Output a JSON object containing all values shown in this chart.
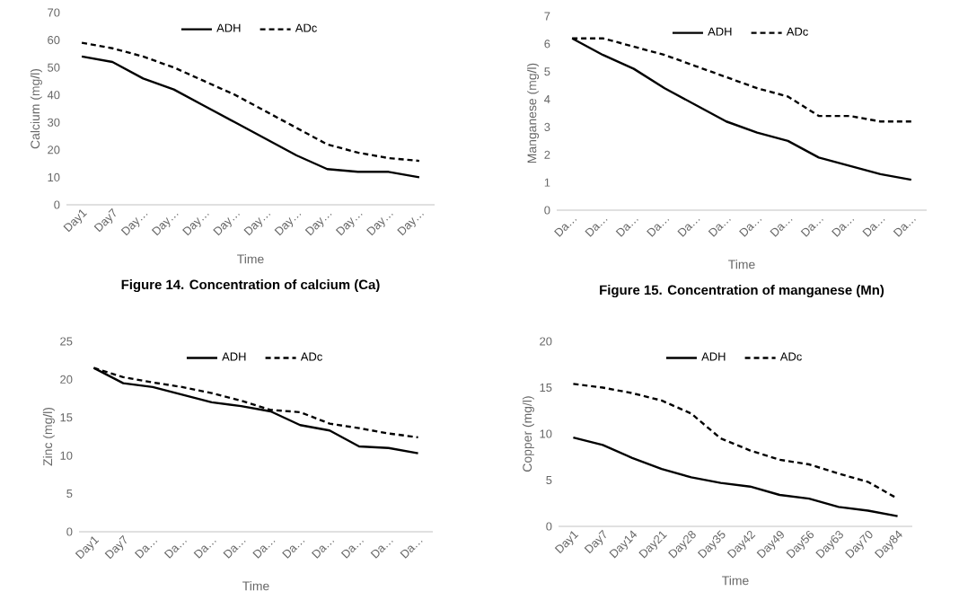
{
  "chart_data": [
    {
      "type": "line",
      "title": "Figure 14. Concentration of calcium (Ca)",
      "xlabel": "Time",
      "ylabel": "Calcium (mg/l)",
      "categories": [
        "Day1",
        "Day7",
        "Day…",
        "Day…",
        "Day…",
        "Day…",
        "Day…",
        "Day…",
        "Day…",
        "Day…",
        "Day…",
        "Day…"
      ],
      "ylim": [
        0,
        70
      ],
      "yticks": [
        0,
        10,
        20,
        30,
        40,
        50,
        60,
        70
      ],
      "legend": "top",
      "series": [
        {
          "name": "ADH",
          "color": "#000000",
          "line_style": "solid",
          "values": [
            54,
            52,
            46,
            42,
            36,
            30,
            24,
            18,
            13,
            12,
            12,
            10
          ]
        },
        {
          "name": "ADc",
          "color": "#000000",
          "line_style": "dashed",
          "values": [
            59,
            57,
            54,
            50,
            45,
            40,
            34,
            28,
            22,
            19,
            17,
            16
          ]
        }
      ]
    },
    {
      "type": "line",
      "title": "Figure 15. Concentration of manganese (Mn)",
      "xlabel": "Time",
      "ylabel": "Manganese (mg/l)",
      "categories": [
        "Da…",
        "Da…",
        "Da…",
        "Da…",
        "Da…",
        "Da…",
        "Da…",
        "Da…",
        "Da…",
        "Da…",
        "Da…",
        "Da…"
      ],
      "ylim": [
        0,
        7
      ],
      "yticks": [
        0,
        1,
        2,
        3,
        4,
        5,
        6,
        7
      ],
      "legend": "top",
      "series": [
        {
          "name": "ADH",
          "color": "#000000",
          "line_style": "solid",
          "values": [
            6.2,
            5.6,
            5.1,
            4.4,
            3.8,
            3.2,
            2.8,
            2.5,
            1.9,
            1.6,
            1.3,
            1.1
          ]
        },
        {
          "name": "ADc",
          "color": "#000000",
          "line_style": "dashed",
          "values": [
            6.2,
            6.2,
            5.9,
            5.6,
            5.2,
            4.8,
            4.4,
            4.1,
            3.4,
            3.4,
            3.2,
            3.2
          ]
        }
      ]
    },
    {
      "type": "line",
      "xlabel": "Time",
      "ylabel": "Zinc (mg/l)",
      "categories": [
        "Day1",
        "Day7",
        "Da…",
        "Da…",
        "Da…",
        "Da…",
        "Da…",
        "Da…",
        "Da…",
        "Da…",
        "Da…",
        "Da…"
      ],
      "ylim": [
        0,
        25
      ],
      "yticks": [
        0,
        5,
        10,
        15,
        20,
        25
      ],
      "legend": "top",
      "series": [
        {
          "name": "ADH",
          "color": "#000000",
          "line_style": "solid",
          "values": [
            21.5,
            19.5,
            19,
            18,
            17,
            16.5,
            15.8,
            14,
            13.3,
            11.2,
            11,
            10.3
          ]
        },
        {
          "name": "ADc",
          "color": "#000000",
          "line_style": "dashed",
          "values": [
            21.5,
            20.3,
            19.6,
            19,
            18.2,
            17.2,
            16,
            15.7,
            14.2,
            13.6,
            12.9,
            12.4
          ]
        }
      ]
    },
    {
      "type": "line",
      "xlabel": "Time",
      "ylabel": "Copper (mg/l)",
      "categories": [
        "Day1",
        "Day7",
        "Day14",
        "Day21",
        "Day28",
        "Day35",
        "Day42",
        "Day49",
        "Day56",
        "Day63",
        "Day70",
        "Day84"
      ],
      "ylim": [
        0,
        20
      ],
      "yticks": [
        0,
        5,
        10,
        15,
        20
      ],
      "legend": "top",
      "series": [
        {
          "name": "ADH",
          "color": "#000000",
          "line_style": "solid",
          "values": [
            9.6,
            8.8,
            7.4,
            6.2,
            5.3,
            4.7,
            4.3,
            3.4,
            3.0,
            2.1,
            1.7,
            1.1
          ]
        },
        {
          "name": "ADc",
          "color": "#000000",
          "line_style": "dashed",
          "values": [
            15.4,
            15,
            14.4,
            13.6,
            12.2,
            9.5,
            8.2,
            7.2,
            6.7,
            5.7,
            4.8,
            3.0
          ]
        }
      ]
    }
  ]
}
